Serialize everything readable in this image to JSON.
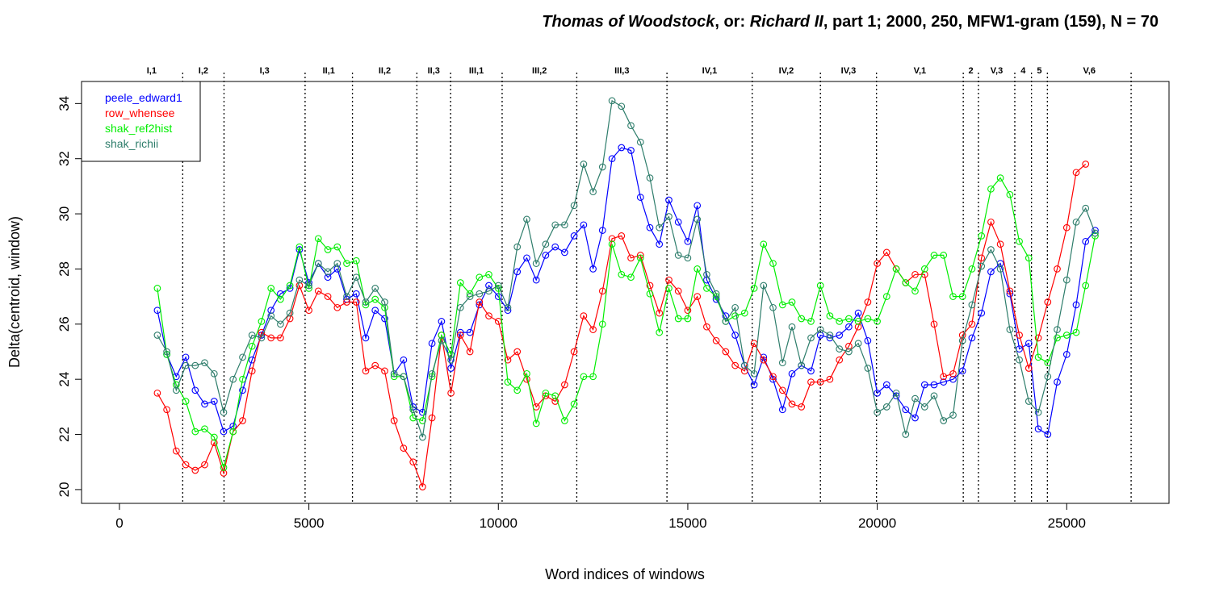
{
  "chart_data": {
    "type": "line",
    "title": {
      "parts": [
        {
          "text": "Thomas of Woodstock",
          "italic": true
        },
        {
          "text": ", or: ",
          "italic": false
        },
        {
          "text": "Richard II",
          "italic": true
        },
        {
          "text": ", part 1; 2000, 250, MFW1-gram (159), N = 70",
          "italic": false
        }
      ]
    },
    "xlabel": "Word indices of windows",
    "ylabel": "Delta(centroid, window)",
    "xlim": [
      -1000,
      27700
    ],
    "ylim": [
      19.5,
      34.8
    ],
    "xticks": [
      0,
      5000,
      10000,
      15000,
      20000,
      25000
    ],
    "xtick_labels": [
      "0",
      "5000",
      "10000",
      "15000",
      "20000",
      "25000"
    ],
    "yticks": [
      20,
      22,
      24,
      26,
      28,
      30,
      32,
      34
    ],
    "ytick_labels": [
      "20",
      "22",
      "24",
      "26",
      "28",
      "30",
      "32",
      "34"
    ],
    "scene_boundaries": [
      1670,
      2760,
      4900,
      6150,
      7850,
      8740,
      10100,
      12070,
      14450,
      16700,
      18500,
      19980,
      22270,
      22670,
      23630,
      24070,
      24490,
      26700
    ],
    "scene_labels": [
      {
        "label": "I,1",
        "x": 850
      },
      {
        "label": "I,2",
        "x": 2215
      },
      {
        "label": "I,3",
        "x": 3830
      },
      {
        "label": "II,1",
        "x": 5525
      },
      {
        "label": "II,2",
        "x": 7000
      },
      {
        "label": "II,3",
        "x": 8295
      },
      {
        "label": "III,1",
        "x": 9420
      },
      {
        "label": "III,2",
        "x": 11085
      },
      {
        "label": "III,3",
        "x": 13260
      },
      {
        "label": "IV,1",
        "x": 15575
      },
      {
        "label": "IV,2",
        "x": 17600
      },
      {
        "label": "IV,3",
        "x": 19240
      },
      {
        "label": "V,1",
        "x": 21125
      },
      {
        "label": "2",
        "x": 22470
      },
      {
        "label": "V,3",
        "x": 23150
      },
      {
        "label": "4",
        "x": 23850
      },
      {
        "label": "5",
        "x": 24280
      },
      {
        "label": "V,6",
        "x": 25595
      }
    ],
    "legend_position": "top-left",
    "series": [
      {
        "name": "peele_edward1",
        "color": "#0000ff",
        "values": [
          26.5,
          24.9,
          24.1,
          24.8,
          23.6,
          23.1,
          23.2,
          22.1,
          22.3,
          23.6,
          24.7,
          25.6,
          26.5,
          27.1,
          27.3,
          28.7,
          27.5,
          28.2,
          27.7,
          28.0,
          26.9,
          27.1,
          25.5,
          26.5,
          26.2,
          24.2,
          24.7,
          23.0,
          22.8,
          25.3,
          26.1,
          24.4,
          25.7,
          25.7,
          26.7,
          27.4,
          27.0,
          26.5,
          27.9,
          28.4,
          27.6,
          28.5,
          28.8,
          28.6,
          29.2,
          29.6,
          28.0,
          29.4,
          32.0,
          32.4,
          32.3,
          30.6,
          29.5,
          28.9,
          30.5,
          29.7,
          29.0,
          30.3,
          27.6,
          26.9,
          26.3,
          25.6,
          24.5,
          23.8,
          24.8,
          24.0,
          22.9,
          24.2,
          24.5,
          24.3,
          25.6,
          25.5,
          25.6,
          25.9,
          26.4,
          25.4,
          23.5,
          23.8,
          23.4,
          22.9,
          22.6,
          23.8,
          23.8,
          23.9,
          24.0,
          24.3,
          25.5,
          26.4,
          27.9,
          28.2,
          27.1,
          25.1,
          25.3,
          22.2,
          22.0,
          23.9,
          24.9,
          26.7,
          29.0,
          29.4
        ]
      },
      {
        "name": "row_whensee",
        "color": "#ff0000",
        "values": [
          23.5,
          22.9,
          21.4,
          20.9,
          20.7,
          20.9,
          21.7,
          20.6,
          22.1,
          22.5,
          24.3,
          25.7,
          25.5,
          25.5,
          26.2,
          27.4,
          26.5,
          27.2,
          27.0,
          26.6,
          26.8,
          26.8,
          24.3,
          24.5,
          24.3,
          22.5,
          21.5,
          21.0,
          20.1,
          22.6,
          25.6,
          23.5,
          25.6,
          25.0,
          26.8,
          26.3,
          26.1,
          24.7,
          25.0,
          24.0,
          23.0,
          23.4,
          23.2,
          23.8,
          25.0,
          26.3,
          25.8,
          27.2,
          29.1,
          29.2,
          28.4,
          28.5,
          27.4,
          26.4,
          27.6,
          27.2,
          26.5,
          27.0,
          25.9,
          25.4,
          25.0,
          24.5,
          24.3,
          25.3,
          24.7,
          24.1,
          23.6,
          23.1,
          23.0,
          23.9,
          23.9,
          24.0,
          24.7,
          25.2,
          25.9,
          26.8,
          28.2,
          28.6,
          28.0,
          27.5,
          27.8,
          27.8,
          26.0,
          24.1,
          24.2,
          25.6,
          26.0,
          28.4,
          29.7,
          28.9,
          27.2,
          25.6,
          24.4,
          25.5,
          26.8,
          28.0,
          29.5,
          31.5,
          31.8
        ]
      },
      {
        "name": "shak_ref2hist",
        "color": "#00ee00",
        "values": [
          27.3,
          24.9,
          23.8,
          23.2,
          22.1,
          22.2,
          21.9,
          20.8,
          22.1,
          24.0,
          25.2,
          26.1,
          27.3,
          26.9,
          27.4,
          28.8,
          27.3,
          29.1,
          28.7,
          28.8,
          28.2,
          28.3,
          26.7,
          26.9,
          26.6,
          24.1,
          24.1,
          22.6,
          22.5,
          24.1,
          25.6,
          24.9,
          27.5,
          27.1,
          27.7,
          27.8,
          27.3,
          23.9,
          23.6,
          24.2,
          22.4,
          23.5,
          23.4,
          22.5,
          23.1,
          24.1,
          24.1,
          26.0,
          28.9,
          27.8,
          27.7,
          28.4,
          27.1,
          25.7,
          27.3,
          26.2,
          26.2,
          28.0,
          27.3,
          27.0,
          26.1,
          26.3,
          26.4,
          27.3,
          28.9,
          28.2,
          26.7,
          26.8,
          26.2,
          26.1,
          27.4,
          26.3,
          26.1,
          26.2,
          26.1,
          26.2,
          26.1,
          27.0,
          28.0,
          27.5,
          27.2,
          28.0,
          28.5,
          28.5,
          27.0,
          27.0,
          28.0,
          29.2,
          30.9,
          31.3,
          30.7,
          29.0,
          28.4,
          24.8,
          24.6,
          25.5,
          25.6,
          25.7,
          27.4,
          29.2
        ]
      },
      {
        "name": "shak_richii",
        "color": "#2e7d6b",
        "values": [
          25.6,
          25.0,
          23.6,
          24.5,
          24.5,
          24.6,
          24.2,
          22.8,
          24.0,
          24.8,
          25.6,
          25.5,
          26.3,
          26.0,
          26.4,
          27.6,
          27.4,
          28.2,
          27.9,
          28.2,
          27.0,
          27.7,
          26.8,
          27.3,
          26.8,
          24.2,
          24.1,
          22.9,
          21.9,
          24.2,
          25.4,
          24.7,
          26.6,
          27.0,
          27.1,
          27.2,
          27.4,
          26.6,
          28.8,
          29.8,
          28.2,
          28.9,
          29.6,
          29.6,
          30.3,
          31.8,
          30.8,
          31.7,
          34.1,
          33.9,
          33.2,
          32.6,
          31.3,
          29.5,
          29.9,
          28.5,
          28.4,
          29.8,
          27.8,
          27.1,
          26.1,
          26.6,
          24.5,
          24.2,
          27.4,
          26.6,
          24.6,
          25.9,
          24.5,
          25.5,
          25.8,
          25.6,
          25.1,
          25.0,
          25.3,
          24.4,
          22.8,
          23.0,
          23.5,
          22.0,
          23.3,
          23.0,
          23.4,
          22.5,
          22.7,
          25.4,
          26.7,
          28.1,
          28.7,
          28.0,
          25.8,
          24.7,
          23.2,
          22.8,
          24.1,
          25.8,
          27.6,
          29.7,
          30.2,
          29.3
        ]
      }
    ]
  }
}
